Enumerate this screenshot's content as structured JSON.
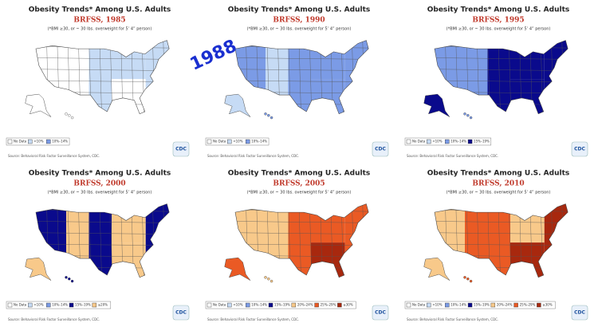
{
  "overlay_label": "1988",
  "panels": [
    {
      "title": "Obesity Trends* Among U.S. Adults",
      "year_label": "BRFSS, 1985",
      "note": "(*BMI ≥30, or ~ 30 lbs. overweight for 5’ 4” person)",
      "legend": [
        {
          "label": "No Data",
          "color": "#ffffff"
        },
        {
          "label": "<10%",
          "color": "#c6dbf5"
        },
        {
          "label": "10%–14%",
          "color": "#7b9be6"
        }
      ],
      "source": "Source: Behavioral Risk Factor Surveillance System, CDC.",
      "logo_text": "CDC"
    },
    {
      "title": "Obesity Trends* Among U.S. Adults",
      "year_label": "BRFSS, 1990",
      "note": "(*BMI ≥30, or ~ 30 lbs. overweight for 5’ 4” person)",
      "legend": [
        {
          "label": "No Data",
          "color": "#ffffff"
        },
        {
          "label": "<10%",
          "color": "#c6dbf5"
        },
        {
          "label": "10%–14%",
          "color": "#7b9be6"
        }
      ],
      "source": "Source: Behavioral Risk Factor Surveillance System, CDC.",
      "logo_text": "CDC"
    },
    {
      "title": "Obesity Trends* Among U.S. Adults",
      "year_label": "BRFSS, 1995",
      "note": "(*BMI ≥30, or ~ 30 lbs. overweight for 5’ 4” person)",
      "legend": [
        {
          "label": "No Data",
          "color": "#ffffff"
        },
        {
          "label": "<10%",
          "color": "#c6dbf5"
        },
        {
          "label": "10%–14%",
          "color": "#7b9be6"
        },
        {
          "label": "15%–19%",
          "color": "#0a0a8c"
        }
      ],
      "source": "Source: Behavioral Risk Factor Surveillance System, CDC.",
      "logo_text": "CDC"
    },
    {
      "title": "Obesity Trends* Among U.S. Adults",
      "year_label": "BRFSS, 2000",
      "note": "(*BMI ≥30, or ~ 30 lbs. overweight for 5’ 4” person)",
      "legend": [
        {
          "label": "No Data",
          "color": "#ffffff"
        },
        {
          "label": "<10%",
          "color": "#c6dbf5"
        },
        {
          "label": "10%–14%",
          "color": "#7b9be6"
        },
        {
          "label": "15%–19%",
          "color": "#0a0a8c"
        },
        {
          "label": "≥20%",
          "color": "#f8c98a"
        }
      ],
      "source": "Source: Behavioral Risk Factor Surveillance System, CDC.",
      "logo_text": "CDC"
    },
    {
      "title": "Obesity Trends* Among U.S. Adults",
      "year_label": "BRFSS, 2005",
      "note": "(*BMI ≥30, or ~ 30 lbs. overweight for 5’ 4” person)",
      "legend": [
        {
          "label": "No Data",
          "color": "#ffffff"
        },
        {
          "label": "<10%",
          "color": "#c6dbf5"
        },
        {
          "label": "10%–14%",
          "color": "#7b9be6"
        },
        {
          "label": "15%–19%",
          "color": "#0a0a8c"
        },
        {
          "label": "20%–24%",
          "color": "#f8c98a"
        },
        {
          "label": "25%–29%",
          "color": "#ea5a24"
        },
        {
          "label": "≥30%",
          "color": "#a8280e"
        }
      ],
      "source": "Source: Behavioral Risk Factor Surveillance System, CDC.",
      "logo_text": "CDC"
    },
    {
      "title": "Obesity Trends* Among U.S. Adults",
      "year_label": "BRFSS, 2010",
      "note": "(*BMI ≥30, or ~ 30 lbs. overweight for 5’ 4” person)",
      "legend": [
        {
          "label": "No Data",
          "color": "#ffffff"
        },
        {
          "label": "<10%",
          "color": "#c6dbf5"
        },
        {
          "label": "10%–14%",
          "color": "#7b9be6"
        },
        {
          "label": "15%–19%",
          "color": "#0a0a8c"
        },
        {
          "label": "20%–24%",
          "color": "#f8c98a"
        },
        {
          "label": "25%–29%",
          "color": "#ea5a24"
        },
        {
          "label": "≥30%",
          "color": "#a8280e"
        }
      ],
      "source": "Source: Behavioral Risk Factor Surveillance System, CDC.",
      "logo_text": "CDC"
    }
  ]
}
